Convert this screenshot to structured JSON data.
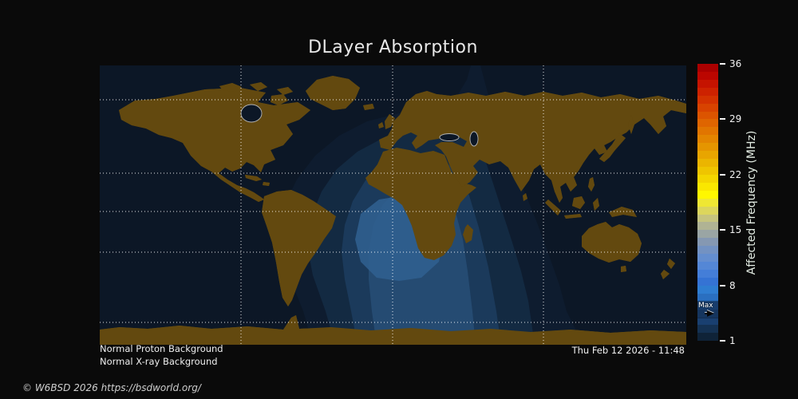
{
  "title": "DLayer Absorption",
  "status": {
    "proton": "Normal Proton Background",
    "xray": "Normal X-ray Background"
  },
  "timestamp": "Thu Feb 12 2026 - 11:48",
  "copyright": "© W6BSD 2026 https://bsdworld.org/",
  "colorbar": {
    "label": "Affected Frequency (MHz)",
    "range": [
      1,
      36
    ],
    "ticks": [
      36,
      29,
      22,
      15,
      8,
      1
    ],
    "segments": [
      "#aa0000",
      "#bb0600",
      "#c51300",
      "#cd2200",
      "#d33200",
      "#d84300",
      "#dc5400",
      "#df6500",
      "#e17500",
      "#e38500",
      "#e59500",
      "#e8a500",
      "#ebb500",
      "#efc500",
      "#f4d600",
      "#fae700",
      "#fff700",
      "#efe733",
      "#dcd65c",
      "#c6c47e",
      "#b0b394",
      "#9aa5a4",
      "#8598b2",
      "#7392c2",
      "#648ecf",
      "#5487d6",
      "#447ed8",
      "#3573d4",
      "#2f7dd1",
      "#2a6fc0",
      "#2560a8",
      "#1f518f",
      "#193f70",
      "#143152",
      "#0f2338"
    ],
    "max_marker": {
      "label": "Max",
      "value_mhz": 4.8
    }
  },
  "map": {
    "ocean_color": "#0c1726",
    "land_color": "#63490f",
    "coastline_color": "#b3b3b3",
    "gridline_color": "#ffffff",
    "band_fills": [
      "rgba(16,31,52,0.65)",
      "rgba(21,44,70,0.88)",
      "rgba(29,60,94,0.88)",
      "rgba(39,77,117,0.88)",
      "rgba(48,96,144,0.88)"
    ]
  },
  "chart_data": {
    "type": "heatmap",
    "title": "DLayer Absorption",
    "colorbar_label": "Affected Frequency (MHz)",
    "colorbar_range": [
      1,
      36
    ],
    "colorbar_ticks": [
      36,
      29,
      22,
      15,
      8,
      1
    ],
    "contour_levels_mhz": [
      1,
      2,
      3,
      4,
      5
    ],
    "max_affected_frequency_mhz": 4.8,
    "max_marker_label": "Max",
    "absorption_center": "day side centered over equatorial Africa / Gulf of Guinea",
    "unaffected_regions": "night side: Americas west, East Asia, Australia",
    "status_lines": [
      "Normal Proton Background",
      "Normal X-ray Background"
    ],
    "timestamp": "Thu Feb 12 2026 - 11:48"
  }
}
